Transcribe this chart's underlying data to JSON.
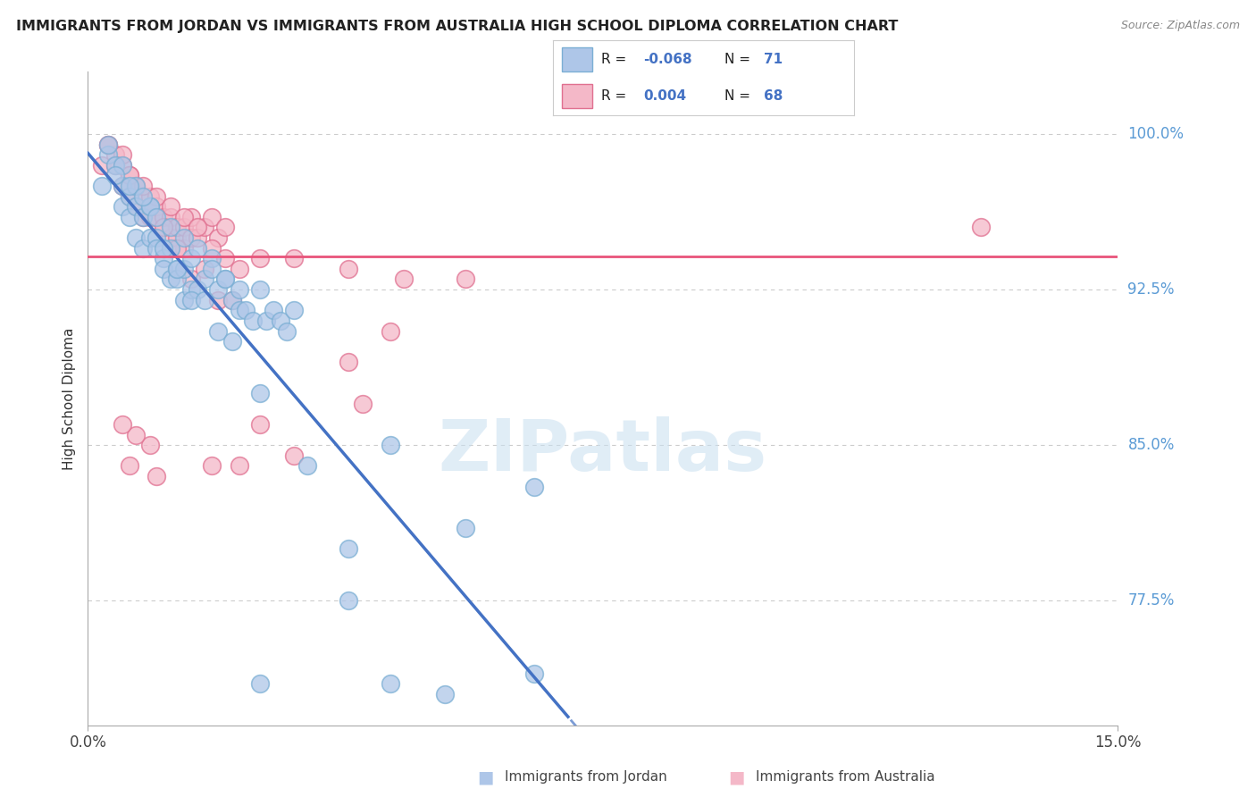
{
  "title": "IMMIGRANTS FROM JORDAN VS IMMIGRANTS FROM AUSTRALIA HIGH SCHOOL DIPLOMA CORRELATION CHART",
  "source": "Source: ZipAtlas.com",
  "ylabel": "High School Diploma",
  "ytick_positions": [
    0.775,
    0.85,
    0.925,
    1.0
  ],
  "ytick_labels": [
    "77.5%",
    "85.0%",
    "92.5%",
    "100.0%"
  ],
  "xlim": [
    0.0,
    0.15
  ],
  "ylim": [
    0.715,
    1.03
  ],
  "jordan_color": "#aec6e8",
  "australia_color": "#f4b8c8",
  "jordan_edge": "#7bafd4",
  "australia_edge": "#e07090",
  "trend_jordan_color": "#4472c4",
  "trend_australia_color": "#e8547a",
  "watermark": "ZIPatlas",
  "jordan_x": [
    0.002,
    0.003,
    0.004,
    0.005,
    0.005,
    0.006,
    0.006,
    0.007,
    0.007,
    0.008,
    0.008,
    0.009,
    0.009,
    0.01,
    0.01,
    0.011,
    0.011,
    0.012,
    0.012,
    0.013,
    0.013,
    0.014,
    0.014,
    0.015,
    0.015,
    0.016,
    0.017,
    0.018,
    0.019,
    0.02,
    0.021,
    0.022,
    0.023,
    0.024,
    0.025,
    0.026,
    0.027,
    0.028,
    0.029,
    0.03,
    0.003,
    0.005,
    0.007,
    0.009,
    0.011,
    0.013,
    0.015,
    0.017,
    0.019,
    0.021,
    0.004,
    0.006,
    0.008,
    0.01,
    0.012,
    0.014,
    0.016,
    0.018,
    0.02,
    0.022,
    0.025,
    0.032,
    0.038,
    0.044,
    0.055,
    0.065,
    0.025,
    0.038,
    0.044,
    0.052,
    0.065
  ],
  "jordan_y": [
    0.975,
    0.99,
    0.985,
    0.965,
    0.975,
    0.96,
    0.97,
    0.95,
    0.965,
    0.945,
    0.96,
    0.95,
    0.965,
    0.95,
    0.945,
    0.94,
    0.935,
    0.93,
    0.945,
    0.935,
    0.93,
    0.92,
    0.935,
    0.925,
    0.94,
    0.925,
    0.93,
    0.94,
    0.925,
    0.93,
    0.92,
    0.915,
    0.915,
    0.91,
    0.925,
    0.91,
    0.915,
    0.91,
    0.905,
    0.915,
    0.995,
    0.985,
    0.975,
    0.965,
    0.945,
    0.935,
    0.92,
    0.92,
    0.905,
    0.9,
    0.98,
    0.975,
    0.97,
    0.96,
    0.955,
    0.95,
    0.945,
    0.935,
    0.93,
    0.925,
    0.875,
    0.84,
    0.8,
    0.85,
    0.81,
    0.83,
    0.735,
    0.775,
    0.735,
    0.73,
    0.74
  ],
  "australia_x": [
    0.002,
    0.003,
    0.004,
    0.005,
    0.005,
    0.006,
    0.006,
    0.007,
    0.007,
    0.008,
    0.008,
    0.009,
    0.009,
    0.01,
    0.01,
    0.011,
    0.011,
    0.012,
    0.012,
    0.013,
    0.013,
    0.014,
    0.014,
    0.015,
    0.015,
    0.016,
    0.017,
    0.018,
    0.019,
    0.02,
    0.003,
    0.005,
    0.007,
    0.009,
    0.011,
    0.013,
    0.015,
    0.017,
    0.019,
    0.021,
    0.004,
    0.006,
    0.008,
    0.01,
    0.012,
    0.014,
    0.016,
    0.018,
    0.02,
    0.022,
    0.025,
    0.03,
    0.038,
    0.046,
    0.055,
    0.13,
    0.044,
    0.038,
    0.04,
    0.025,
    0.03,
    0.022,
    0.018,
    0.01,
    0.006,
    0.009,
    0.007,
    0.005
  ],
  "australia_y": [
    0.985,
    0.995,
    0.99,
    0.975,
    0.985,
    0.97,
    0.98,
    0.965,
    0.975,
    0.96,
    0.97,
    0.96,
    0.97,
    0.96,
    0.965,
    0.955,
    0.96,
    0.95,
    0.96,
    0.95,
    0.955,
    0.945,
    0.955,
    0.95,
    0.96,
    0.95,
    0.955,
    0.96,
    0.95,
    0.955,
    0.995,
    0.99,
    0.975,
    0.965,
    0.955,
    0.945,
    0.93,
    0.935,
    0.92,
    0.92,
    0.985,
    0.98,
    0.975,
    0.97,
    0.965,
    0.96,
    0.955,
    0.945,
    0.94,
    0.935,
    0.94,
    0.94,
    0.935,
    0.93,
    0.93,
    0.955,
    0.905,
    0.89,
    0.87,
    0.86,
    0.845,
    0.84,
    0.84,
    0.835,
    0.84,
    0.85,
    0.855,
    0.86
  ]
}
